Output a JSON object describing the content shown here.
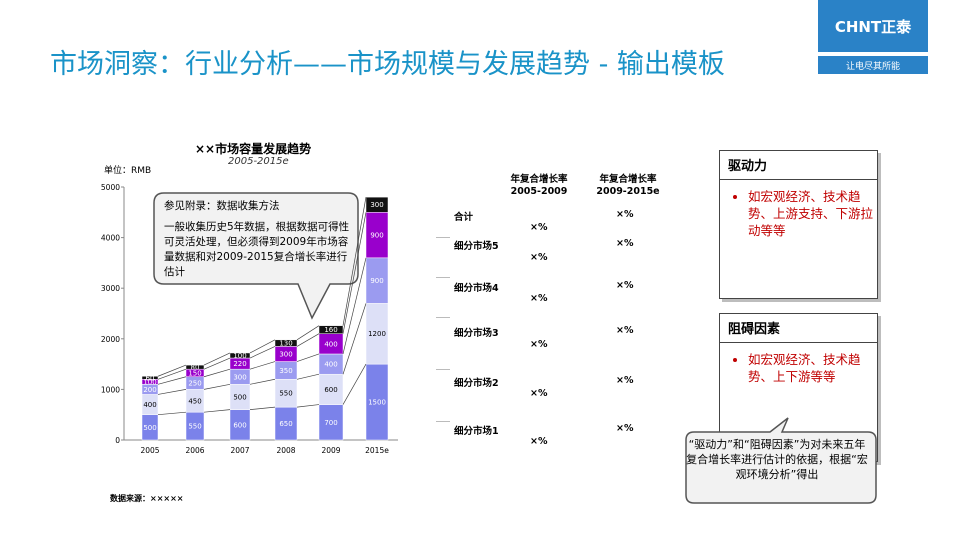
{
  "page": {
    "title": "市场洞察：行业分析——市场规模与发展趋势 - 输出模板",
    "logo": {
      "brand": "CHNT正泰",
      "tagline": "让电尽其所能"
    }
  },
  "chart_header": {
    "title": "××市场容量发展趋势",
    "subtitle": "2005-2015e",
    "unit": "单位：RMB",
    "source": "数据来源：×××××"
  },
  "chart_data": {
    "type": "bar",
    "stacked": true,
    "categories": [
      "2005",
      "2006",
      "2007",
      "2008",
      "2009",
      "2015e"
    ],
    "ylim": [
      0,
      5000
    ],
    "yticks": [
      0,
      1000,
      2000,
      3000,
      4000,
      5000
    ],
    "series": [
      {
        "values": [
          500,
          550,
          600,
          650,
          700,
          1500
        ],
        "color": "#7b82ea"
      },
      {
        "values": [
          400,
          450,
          500,
          550,
          600,
          1200
        ],
        "color": "#dde0f7"
      },
      {
        "values": [
          200,
          250,
          300,
          350,
          400,
          900
        ],
        "color": "#9b9bf0"
      },
      {
        "values": [
          100,
          150,
          220,
          300,
          400,
          900
        ],
        "color": "#9900cc"
      },
      {
        "values": [
          60,
          80,
          100,
          130,
          160,
          300
        ],
        "color": "#111111"
      }
    ],
    "label_colors": [
      "#ffffff",
      "#000000",
      "#ffffff",
      "#ffffff",
      "#ffffff"
    ]
  },
  "callout": {
    "heading": "参见附录：数据收集方法",
    "body": "一般收集历史5年数据，根据数据可得性可灵活处理，但必须得到2009年市场容量数据和对2009-2015复合增长率进行估计"
  },
  "cagr": {
    "col1_header": "年复合增长率\n2005-2009",
    "col2_header": "年复合增长率\n2009-2015e",
    "rows": [
      {
        "label": "合计",
        "v1": "×%",
        "v2": "×%"
      },
      {
        "label": "细分市场5",
        "v1": "×%",
        "v2": "×%"
      },
      {
        "label": "细分市场4",
        "v1": "×%",
        "v2": "×%"
      },
      {
        "label": "细分市场3",
        "v1": "×%",
        "v2": "×%"
      },
      {
        "label": "细分市场2",
        "v1": "×%",
        "v2": "×%"
      },
      {
        "label": "细分市场1",
        "v1": "×%",
        "v2": "×%"
      }
    ]
  },
  "drivers": {
    "title": "驱动力",
    "items": [
      "如宏观经济、技术趋势、上游支持、下游拉动等等"
    ]
  },
  "barriers": {
    "title": "阻碍因素",
    "items": [
      "如宏观经济、技术趋势、上下游等等"
    ]
  },
  "note": "“驱动力”和“阻碍因素”为对未来五年复合增长率进行估计的依据，根据“宏观环境分析”得出"
}
